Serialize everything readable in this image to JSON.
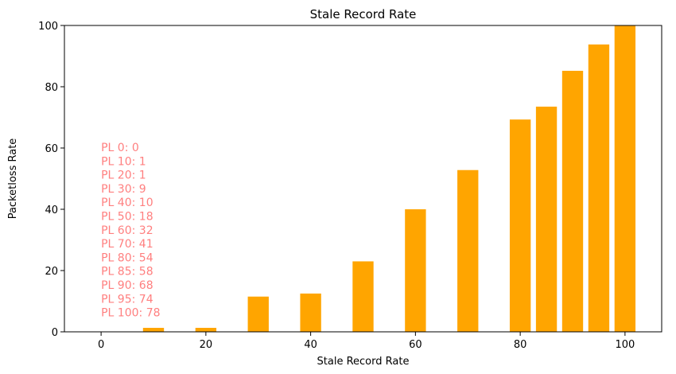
{
  "chart_data": {
    "type": "bar",
    "title": "Stale Record Rate",
    "xlabel": "Stale Record Rate",
    "ylabel": "Packetloss Rate",
    "xlim": [
      -7,
      107
    ],
    "ylim": [
      0,
      100
    ],
    "x_ticks": [
      0,
      20,
      40,
      60,
      80,
      100
    ],
    "y_ticks": [
      0,
      20,
      40,
      60,
      80,
      100
    ],
    "bar_color": "#FFA500",
    "bar_width": 4,
    "x": [
      10,
      20,
      30,
      40,
      50,
      60,
      70,
      80,
      85,
      90,
      95,
      100
    ],
    "values": [
      1.3,
      1.3,
      11.5,
      12.5,
      23,
      40,
      52.8,
      69.3,
      73.5,
      85.2,
      93.8,
      100
    ],
    "grid": false,
    "annotations": {
      "color": "#FF7F7F",
      "lines": [
        "PL 0: 0",
        "PL 10: 1",
        "PL 20: 1",
        "PL 30: 9",
        "PL 40: 10",
        "PL 50: 18",
        "PL 60: 32",
        "PL 70: 41",
        "PL 80: 54",
        "PL 85: 58",
        "PL 90: 68",
        "PL 95: 74",
        "PL 100: 78"
      ]
    }
  }
}
